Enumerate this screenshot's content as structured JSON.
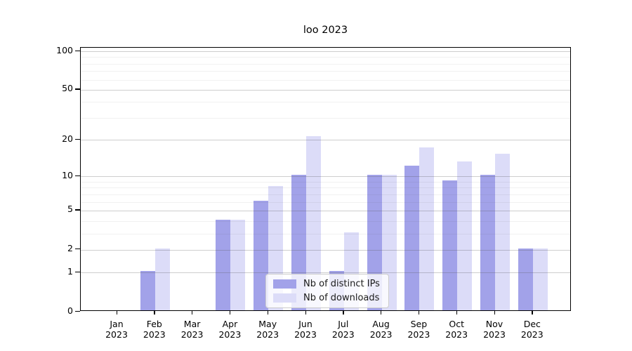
{
  "title": "loo 2023",
  "chart_data": {
    "type": "bar",
    "title": "loo 2023",
    "categories": [
      "Jan",
      "Feb",
      "Mar",
      "Apr",
      "May",
      "Jun",
      "Jul",
      "Aug",
      "Sep",
      "Oct",
      "Nov",
      "Dec"
    ],
    "year_label": "2023",
    "series": [
      {
        "name": "Nb of distinct IPs",
        "color": "#a2a2e9",
        "values": [
          0,
          1,
          0,
          4,
          6,
          10,
          1,
          10,
          12,
          9,
          10,
          2
        ]
      },
      {
        "name": "Nb of downloads",
        "color": "#dcdcf8",
        "values": [
          0,
          2,
          0,
          4,
          8,
          21,
          3,
          10,
          17,
          13,
          15,
          2
        ]
      }
    ],
    "yscale": "log1p",
    "yticks": [
      0,
      1,
      2,
      5,
      10,
      20,
      50,
      100
    ],
    "minor_yticks": [
      3,
      4,
      6,
      7,
      8,
      9,
      30,
      40,
      60,
      70,
      80,
      90
    ],
    "ylim": [
      0,
      106
    ],
    "grid": true,
    "legend_position": "lower-center",
    "axis_color": "#000000",
    "background_color": "#ffffff"
  }
}
